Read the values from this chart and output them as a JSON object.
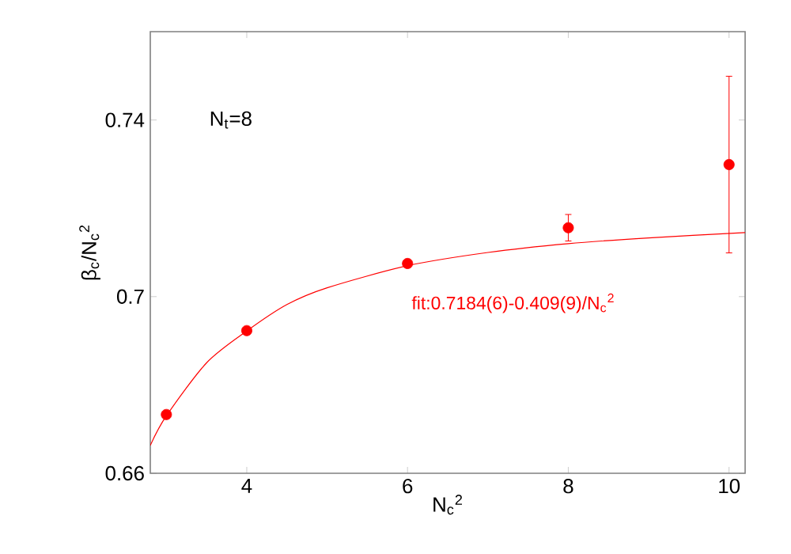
{
  "chart_data": {
    "type": "scatter",
    "xlabel": "N$_{c}$$^{2}$",
    "ylabel": "β$_{c}$/N$_{c}$$^{2}$",
    "xlim": [
      2.8,
      10.2
    ],
    "ylim": [
      0.66,
      0.76
    ],
    "xticks": [
      4,
      6,
      8,
      10
    ],
    "yticks": [
      0.66,
      {
        "value": 0.7,
        "label": "0.7"
      },
      0.74
    ],
    "grid": false,
    "annotations": [
      "N$_{t}$=8",
      "fit:0.7184(6)-0.409(9)/N$_{c}$$^{2}$"
    ],
    "series": [
      {
        "color": "#ff0000",
        "marker": "circle",
        "x": [
          3,
          4,
          6,
          8,
          10
        ],
        "values": [
          0.6733,
          0.6923,
          0.7075,
          0.7156,
          0.7299
        ],
        "errors": [
          null,
          null,
          null,
          0.003,
          0.02
        ]
      },
      {
        "type": "line",
        "color": "#ff0000",
        "line_style": "solid",
        "x": [
          2.8,
          3,
          3.5,
          4,
          4.5,
          5,
          6,
          7,
          8,
          9,
          10.2
        ],
        "values": [
          0.6663,
          0.673,
          0.685,
          0.6922,
          0.6982,
          0.702,
          0.707,
          0.71,
          0.712,
          0.7133,
          0.7145
        ]
      }
    ]
  }
}
